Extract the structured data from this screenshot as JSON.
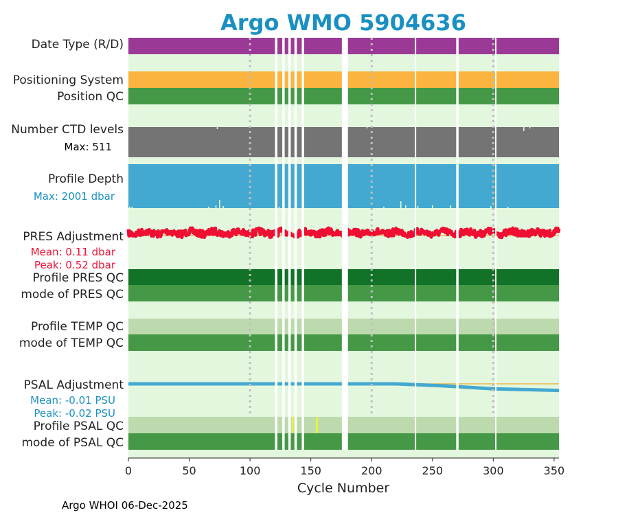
{
  "title": "Argo WMO 5904636",
  "footer": "Argo WHOI 06-Dec-2025",
  "chart_data": {
    "type": "bar",
    "title": "Argo WMO 5904636",
    "xlabel": "Cycle Number",
    "xlim": [
      0,
      354
    ],
    "xticks": [
      0,
      50,
      100,
      150,
      200,
      250,
      300,
      350
    ],
    "grid_x": [
      100,
      200,
      300
    ],
    "missing_cycles": [
      121,
      122,
      127,
      128,
      132,
      133,
      137,
      138,
      143,
      144,
      176,
      177,
      178,
      179,
      180,
      236,
      270,
      271,
      302
    ],
    "colors": {
      "background": "#e3f7de",
      "title": "#1a90c2",
      "date_type": "#9b3a96",
      "positioning_system": "#fbb43f",
      "qc_good": "#449846",
      "qc_dark": "#117228",
      "qc_light": "#bcdaad",
      "ctd_levels": "#747474",
      "profile_depth": "#44a9d0",
      "pres_adjustment": "#ee0f33",
      "psal_adjustment": "#44a9d0",
      "reference_line": "#f0a830",
      "flag_yellow": "#ffff00"
    },
    "rows": {
      "date_type": {
        "label": "Date Type (R/D)"
      },
      "positioning": {
        "label": "Positioning System"
      },
      "position_qc": {
        "label": "Position QC"
      },
      "ctd_levels": {
        "label": "Number CTD levels",
        "max_label": "Max: 511",
        "max": 511
      },
      "profile_depth": {
        "label": "Profile Depth",
        "max_label": "Max: 2001 dbar",
        "max": 2001
      },
      "pres_adjustment": {
        "label": "PRES Adjustment",
        "mean_label": "Mean: 0.11 dbar",
        "peak_label": "Peak: 0.52 dbar",
        "mean": 0.11,
        "peak": 0.52
      },
      "profile_pres_qc": {
        "label": "Profile PRES QC"
      },
      "mode_pres_qc": {
        "label": "mode of PRES QC"
      },
      "profile_temp_qc": {
        "label": "Profile TEMP QC"
      },
      "mode_temp_qc": {
        "label": "mode of TEMP QC"
      },
      "psal_adjustment": {
        "label": "PSAL Adjustment",
        "mean_label": "Mean: -0.01 PSU",
        "peak_label": "Peak: -0.02 PSU",
        "mean": -0.01,
        "peak": -0.02,
        "trend": [
          [
            0,
            0.0
          ],
          [
            220,
            0.0
          ],
          [
            260,
            -0.005
          ],
          [
            300,
            -0.012
          ],
          [
            354,
            -0.016
          ]
        ]
      },
      "profile_psal_qc": {
        "label": "Profile PSAL QC",
        "flagged_cycles": [
          135,
          155
        ]
      },
      "mode_psal_qc": {
        "label": "mode of PSAL QC"
      }
    }
  }
}
